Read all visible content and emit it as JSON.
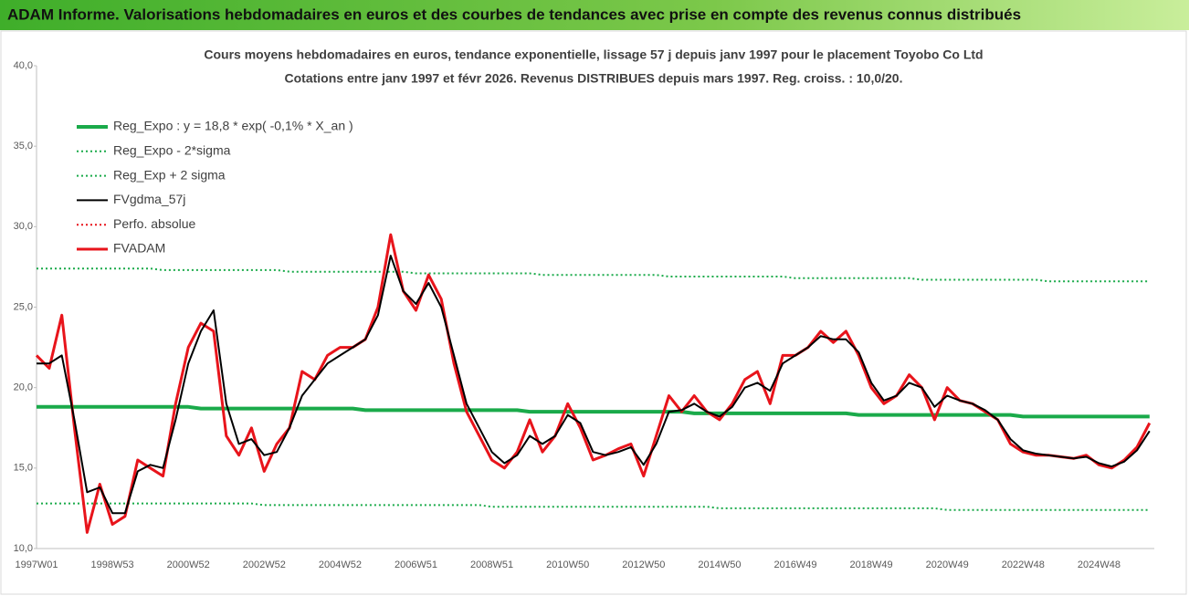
{
  "chart_data": {
    "type": "line",
    "title": "ADAM Informe. Valorisations hebdomadaires en euros et des courbes de tendances avec prise en compte des revenus connus distribués",
    "subtitle": [
      "Cours moyens hebdomadaires en euros, tendance exponentielle, lissage 57 j depuis janv 1997 pour le placement Toyobo Co Ltd",
      "Cotations entre janv 1997 et févr 2026. Revenus DISTRIBUES depuis mars 1997. Reg. croiss. : 10,0/20."
    ],
    "categories": [
      "1997W01",
      null,
      null,
      null,
      null,
      null,
      "1998W53",
      null,
      null,
      null,
      null,
      null,
      "2000W52",
      null,
      null,
      null,
      null,
      null,
      "2002W52",
      null,
      null,
      null,
      null,
      null,
      "2004W52",
      null,
      null,
      null,
      null,
      null,
      "2006W51",
      null,
      null,
      null,
      null,
      null,
      "2008W51",
      null,
      null,
      null,
      null,
      null,
      "2010W50",
      null,
      null,
      null,
      null,
      null,
      "2012W50",
      null,
      null,
      null,
      null,
      null,
      "2014W50",
      null,
      null,
      null,
      null,
      null,
      "2016W49",
      null,
      null,
      null,
      null,
      null,
      "2018W49",
      null,
      null,
      null,
      null,
      null,
      "2020W49",
      null,
      null,
      null,
      null,
      null,
      "2022W48",
      null,
      null,
      null,
      null,
      null,
      "2024W48",
      null,
      null,
      null,
      null
    ],
    "ylim": [
      10,
      40
    ],
    "yticks": [
      {
        "value": 10,
        "label": "10,0"
      },
      {
        "value": 15,
        "label": "15,0"
      },
      {
        "value": 20,
        "label": "20,0"
      },
      {
        "value": 25,
        "label": "25,0"
      },
      {
        "value": 30,
        "label": "30,0"
      },
      {
        "value": 35,
        "label": "35,0"
      },
      {
        "value": 40,
        "label": "40,0"
      }
    ],
    "legend": "upper left",
    "series": [
      {
        "name": "Reg_Expo : y = 18,8 * exp( -0,1% *  X_an )",
        "color": "#1aaa4a",
        "width": 4,
        "dash": "solid",
        "values": [
          18.8,
          18.8,
          18.8,
          18.8,
          18.8,
          18.8,
          18.8,
          18.8,
          18.8,
          18.8,
          18.8,
          18.8,
          18.8,
          18.7,
          18.7,
          18.7,
          18.7,
          18.7,
          18.7,
          18.7,
          18.7,
          18.7,
          18.7,
          18.7,
          18.7,
          18.7,
          18.6,
          18.6,
          18.6,
          18.6,
          18.6,
          18.6,
          18.6,
          18.6,
          18.6,
          18.6,
          18.6,
          18.6,
          18.6,
          18.5,
          18.5,
          18.5,
          18.5,
          18.5,
          18.5,
          18.5,
          18.5,
          18.5,
          18.5,
          18.5,
          18.5,
          18.5,
          18.4,
          18.4,
          18.4,
          18.4,
          18.4,
          18.4,
          18.4,
          18.4,
          18.4,
          18.4,
          18.4,
          18.4,
          18.4,
          18.3,
          18.3,
          18.3,
          18.3,
          18.3,
          18.3,
          18.3,
          18.3,
          18.3,
          18.3,
          18.3,
          18.3,
          18.3,
          18.2,
          18.2,
          18.2,
          18.2,
          18.2,
          18.2,
          18.2,
          18.2,
          18.2,
          18.2,
          18.2
        ]
      },
      {
        "name": "Reg_Expo - 2*sigma",
        "color": "#1aaa4a",
        "width": 2,
        "dash": "dotted",
        "values": [
          12.8,
          12.8,
          12.8,
          12.8,
          12.8,
          12.8,
          12.8,
          12.8,
          12.8,
          12.8,
          12.8,
          12.8,
          12.8,
          12.8,
          12.8,
          12.8,
          12.8,
          12.8,
          12.7,
          12.7,
          12.7,
          12.7,
          12.7,
          12.7,
          12.7,
          12.7,
          12.7,
          12.7,
          12.7,
          12.7,
          12.7,
          12.7,
          12.7,
          12.7,
          12.7,
          12.7,
          12.6,
          12.6,
          12.6,
          12.6,
          12.6,
          12.6,
          12.6,
          12.6,
          12.6,
          12.6,
          12.6,
          12.6,
          12.6,
          12.6,
          12.6,
          12.6,
          12.6,
          12.6,
          12.5,
          12.5,
          12.5,
          12.5,
          12.5,
          12.5,
          12.5,
          12.5,
          12.5,
          12.5,
          12.5,
          12.5,
          12.5,
          12.5,
          12.5,
          12.5,
          12.5,
          12.5,
          12.4,
          12.4,
          12.4,
          12.4,
          12.4,
          12.4,
          12.4,
          12.4,
          12.4,
          12.4,
          12.4,
          12.4,
          12.4,
          12.4,
          12.4,
          12.4,
          12.4
        ]
      },
      {
        "name": "Reg_Exp + 2 sigma",
        "color": "#1aaa4a",
        "width": 2,
        "dash": "dotted",
        "values": [
          27.4,
          27.4,
          27.4,
          27.4,
          27.4,
          27.4,
          27.4,
          27.4,
          27.4,
          27.4,
          27.3,
          27.3,
          27.3,
          27.3,
          27.3,
          27.3,
          27.3,
          27.3,
          27.3,
          27.3,
          27.2,
          27.2,
          27.2,
          27.2,
          27.2,
          27.2,
          27.2,
          27.2,
          27.2,
          27.2,
          27.1,
          27.1,
          27.1,
          27.1,
          27.1,
          27.1,
          27.1,
          27.1,
          27.1,
          27.1,
          27.0,
          27.0,
          27.0,
          27.0,
          27.0,
          27.0,
          27.0,
          27.0,
          27.0,
          27.0,
          26.9,
          26.9,
          26.9,
          26.9,
          26.9,
          26.9,
          26.9,
          26.9,
          26.9,
          26.9,
          26.8,
          26.8,
          26.8,
          26.8,
          26.8,
          26.8,
          26.8,
          26.8,
          26.8,
          26.8,
          26.7,
          26.7,
          26.7,
          26.7,
          26.7,
          26.7,
          26.7,
          26.7,
          26.7,
          26.7,
          26.6,
          26.6,
          26.6,
          26.6,
          26.6,
          26.6,
          26.6,
          26.6,
          26.6
        ]
      },
      {
        "name": "FVgdma_57j",
        "color": "#000000",
        "width": 2,
        "dash": "solid",
        "values": [
          21.5,
          21.5,
          22.0,
          18.0,
          13.5,
          13.8,
          12.2,
          12.2,
          14.8,
          15.2,
          15.0,
          18.0,
          21.5,
          23.5,
          24.8,
          19.0,
          16.5,
          16.8,
          15.8,
          16.0,
          17.5,
          19.5,
          20.5,
          21.5,
          22.0,
          22.5,
          23.0,
          24.5,
          28.2,
          26.0,
          25.2,
          26.5,
          25.0,
          22.0,
          19.0,
          17.5,
          16.0,
          15.3,
          15.8,
          17.0,
          16.5,
          17.0,
          18.3,
          17.8,
          16.0,
          15.8,
          16.0,
          16.3,
          15.2,
          16.5,
          18.5,
          18.6,
          19.0,
          18.5,
          18.2,
          18.8,
          20.0,
          20.3,
          19.8,
          21.5,
          22.0,
          22.5,
          23.2,
          23.0,
          23.0,
          22.2,
          20.3,
          19.2,
          19.5,
          20.3,
          20.0,
          18.8,
          19.5,
          19.2,
          19.0,
          18.6,
          18.0,
          16.8,
          16.1,
          15.9,
          15.8,
          15.7,
          15.6,
          15.7,
          15.3,
          15.1,
          15.4,
          16.1,
          17.3
        ]
      },
      {
        "name": "Perfo. absolue",
        "color": "#e8141b",
        "width": 2,
        "dash": "dotted",
        "values": [
          null,
          null,
          null,
          null,
          null,
          null,
          null,
          null,
          null,
          null,
          null,
          null,
          null,
          null,
          null,
          null,
          null,
          null,
          null,
          null,
          null,
          null,
          null,
          null,
          null,
          null,
          null,
          null,
          null,
          null,
          null,
          null,
          null,
          null,
          null,
          null,
          null,
          null,
          null,
          null,
          null,
          null,
          null,
          null,
          null,
          null,
          null,
          null,
          null,
          null,
          null,
          null,
          null,
          null,
          null,
          null,
          null,
          null,
          null,
          null,
          null,
          null,
          null,
          null,
          null,
          null,
          null,
          null,
          null,
          null,
          null,
          null,
          null,
          null,
          null,
          null,
          null,
          null,
          null,
          null,
          null,
          null,
          null,
          null,
          null,
          null,
          null,
          null,
          null
        ]
      },
      {
        "name": "FVADAM",
        "color": "#e8141b",
        "width": 3,
        "dash": "solid",
        "values": [
          22.0,
          21.2,
          24.5,
          17.5,
          11.0,
          14.0,
          11.5,
          12.0,
          15.5,
          15.0,
          14.5,
          19.0,
          22.5,
          24.0,
          23.5,
          17.0,
          15.8,
          17.5,
          14.8,
          16.5,
          17.5,
          21.0,
          20.5,
          22.0,
          22.5,
          22.5,
          23.0,
          25.0,
          29.5,
          26.0,
          24.8,
          27.0,
          25.5,
          21.5,
          18.5,
          17.0,
          15.5,
          15.0,
          16.0,
          18.0,
          16.0,
          17.0,
          19.0,
          17.5,
          15.5,
          15.8,
          16.2,
          16.5,
          14.5,
          17.0,
          19.5,
          18.5,
          19.5,
          18.5,
          18.0,
          19.0,
          20.5,
          21.0,
          19.0,
          22.0,
          22.0,
          22.5,
          23.5,
          22.8,
          23.5,
          22.0,
          20.0,
          19.0,
          19.5,
          20.8,
          20.0,
          18.0,
          20.0,
          19.2,
          19.0,
          18.5,
          18.0,
          16.5,
          16.0,
          15.8,
          15.8,
          15.7,
          15.6,
          15.8,
          15.2,
          15.0,
          15.5,
          16.3,
          17.8
        ]
      }
    ],
    "draw_order": [
      0,
      1,
      2,
      4,
      5,
      3
    ]
  }
}
